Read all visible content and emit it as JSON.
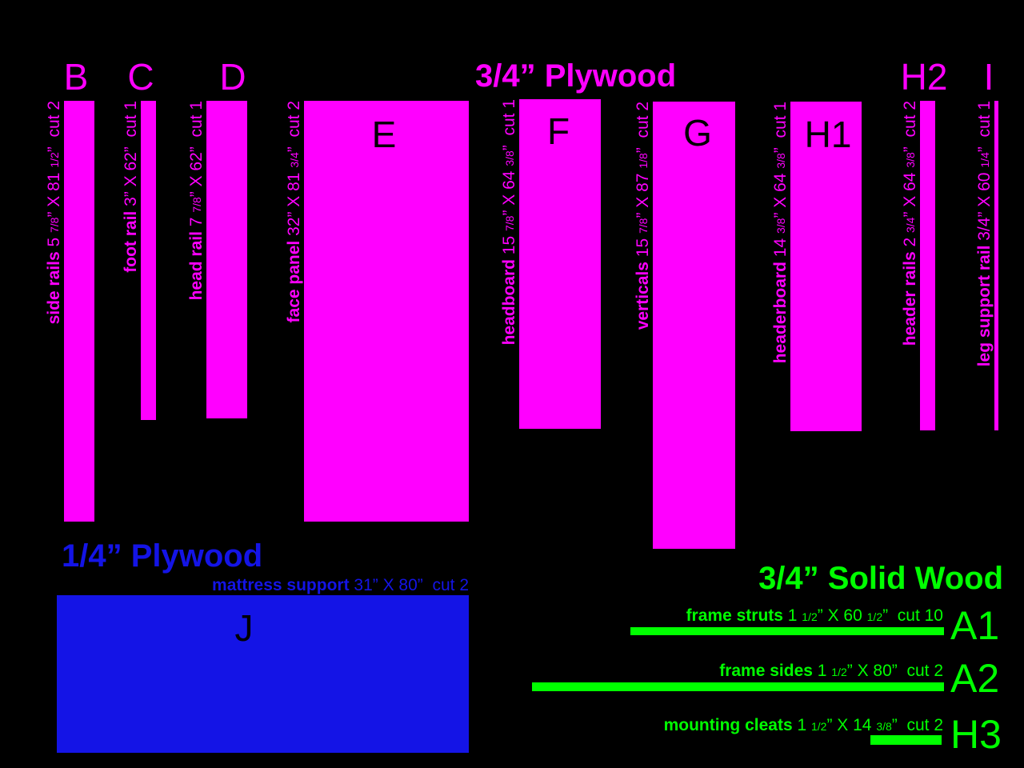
{
  "colors": {
    "plywood_34": "#ff00ff",
    "plywood_14": "#1414e6",
    "solid_wood": "#00ff00",
    "background": "#000000",
    "letter_on_panel": "#000000"
  },
  "titles": {
    "plywood_34": "3/4” Plywood",
    "plywood_14": "1/4” Plywood",
    "solid_wood": "3/4” Solid Wood"
  },
  "plywood_34_pieces": [
    {
      "letter": "B",
      "name": "side rails",
      "dims": "5 7/8” X 81 1/2”",
      "cut": "cut 2"
    },
    {
      "letter": "C",
      "name": "foot rail",
      "dims": "3” X 62”",
      "cut": "cut 1"
    },
    {
      "letter": "D",
      "name": "head rail",
      "dims": "7 7/8” X 62”",
      "cut": "cut 1"
    },
    {
      "letter": "E",
      "name": "face panel",
      "dims": "32” X 81 3/4”",
      "cut": "cut 2"
    },
    {
      "letter": "F",
      "name": "headboard",
      "dims": "15 7/8” X 64 3/8”",
      "cut": "cut 1"
    },
    {
      "letter": "G",
      "name": "verticals",
      "dims": "15 7/8” X 87 1/8”",
      "cut": "cut 2"
    },
    {
      "letter": "H1",
      "name": "headerboard",
      "dims": "14 3/8” X 64 3/8”",
      "cut": "cut 1"
    },
    {
      "letter": "H2",
      "name": "header rails",
      "dims": "2 3/4” X 64 3/8”",
      "cut": "cut 2"
    },
    {
      "letter": "I",
      "name": "leg support rail",
      "dims": "3/4” X 60 1/4”",
      "cut": "cut 1"
    }
  ],
  "plywood_14_pieces": [
    {
      "letter": "J",
      "name": "mattress support",
      "dims": "31” X 80”",
      "cut": "cut 2"
    }
  ],
  "solid_wood_pieces": [
    {
      "letter": "A1",
      "name": "frame struts",
      "dims": "1 1/2” X 60 1/2”",
      "cut": "cut 10"
    },
    {
      "letter": "A2",
      "name": "frame sides",
      "dims": "1 1/2” X 80”",
      "cut": "cut 2"
    },
    {
      "letter": "H3",
      "name": "mounting cleats",
      "dims": "1 1/2” X 14 3/8”",
      "cut": "cut 2"
    }
  ]
}
